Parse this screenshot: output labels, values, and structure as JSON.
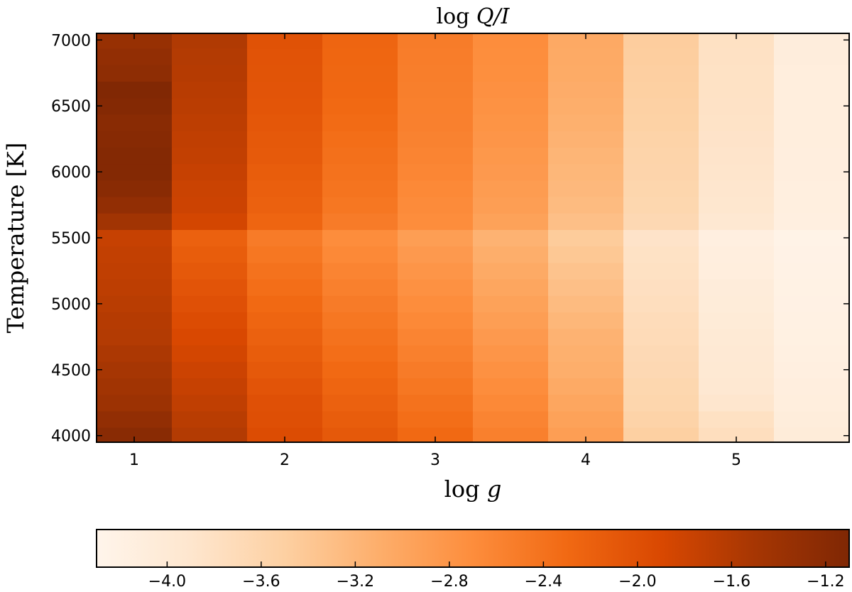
{
  "chart_data": {
    "type": "heatmap",
    "title": "log Q/I",
    "title_parts": {
      "prefix": "log ",
      "math": "Q/I"
    },
    "xlabel": "log g",
    "xlabel_parts": {
      "prefix": "log ",
      "math": "g"
    },
    "ylabel": "Temperature [K]",
    "x": [
      1.0,
      1.5,
      2.0,
      2.5,
      3.0,
      3.5,
      4.0,
      4.5,
      5.0,
      5.5
    ],
    "y": [
      4000,
      4125,
      4250,
      4375,
      4500,
      4625,
      4750,
      4875,
      5000,
      5125,
      5250,
      5375,
      5500,
      5625,
      5750,
      5875,
      6000,
      6125,
      6250,
      6375,
      6500,
      6625,
      6750,
      6875,
      7000
    ],
    "xlim": [
      0.75,
      5.75
    ],
    "ylim": [
      3950,
      7050
    ],
    "xticks": [
      1,
      2,
      3,
      4,
      5
    ],
    "yticks": [
      4000,
      4500,
      5000,
      5500,
      6000,
      6500,
      7000
    ],
    "colorbar": {
      "orientation": "horizontal",
      "colormap": "Oranges",
      "vmin": -4.3,
      "vmax": -1.1,
      "ticks": [
        "−4.0",
        "−3.6",
        "−3.2",
        "−2.8",
        "−2.4",
        "−2.0",
        "−1.6",
        "−1.2"
      ],
      "tick_values": [
        -4.0,
        -3.6,
        -3.2,
        -2.8,
        -2.4,
        -2.0,
        -1.6,
        -1.2
      ]
    },
    "grid": false,
    "z_approx": [
      [
        -1.2,
        -1.6,
        -1.95,
        -2.1,
        -2.3,
        -2.55,
        -2.9,
        -3.5,
        -3.75,
        -4.05
      ],
      [
        -1.3,
        -1.65,
        -1.98,
        -2.15,
        -2.35,
        -2.6,
        -2.95,
        -3.55,
        -3.8,
        -4.08
      ],
      [
        -1.4,
        -1.7,
        -2.0,
        -2.2,
        -2.4,
        -2.65,
        -3.0,
        -3.6,
        -3.9,
        -4.1
      ],
      [
        -1.45,
        -1.75,
        -2.05,
        -2.25,
        -2.45,
        -2.7,
        -3.05,
        -3.62,
        -3.95,
        -4.12
      ],
      [
        -1.5,
        -1.8,
        -2.1,
        -2.3,
        -2.5,
        -2.75,
        -3.1,
        -3.65,
        -3.97,
        -4.15
      ],
      [
        -1.55,
        -1.85,
        -2.15,
        -2.35,
        -2.55,
        -2.8,
        -3.12,
        -3.67,
        -3.98,
        -4.16
      ],
      [
        -1.6,
        -1.9,
        -2.2,
        -2.4,
        -2.6,
        -2.85,
        -3.15,
        -3.7,
        -4.0,
        -4.18
      ],
      [
        -1.62,
        -1.95,
        -2.25,
        -2.45,
        -2.65,
        -2.9,
        -3.2,
        -3.72,
        -4.02,
        -4.19
      ],
      [
        -1.65,
        -2.0,
        -2.3,
        -2.5,
        -2.7,
        -2.95,
        -3.25,
        -3.75,
        -4.05,
        -4.2
      ],
      [
        -1.68,
        -2.05,
        -2.35,
        -2.55,
        -2.75,
        -3.0,
        -3.3,
        -3.78,
        -4.07,
        -4.21
      ],
      [
        -1.7,
        -2.1,
        -2.4,
        -2.6,
        -2.8,
        -3.05,
        -3.35,
        -3.8,
        -4.1,
        -4.22
      ],
      [
        -1.72,
        -2.15,
        -2.45,
        -2.65,
        -2.85,
        -3.1,
        -3.4,
        -3.82,
        -4.12,
        -4.23
      ],
      [
        -1.75,
        -2.2,
        -2.5,
        -2.7,
        -2.9,
        -3.15,
        -3.45,
        -3.85,
        -4.15,
        -4.25
      ],
      [
        -1.45,
        -1.85,
        -2.25,
        -2.5,
        -2.7,
        -2.95,
        -3.3,
        -3.65,
        -3.95,
        -4.15
      ],
      [
        -1.3,
        -1.8,
        -2.2,
        -2.45,
        -2.68,
        -2.9,
        -3.25,
        -3.62,
        -3.92,
        -4.14
      ],
      [
        -1.2,
        -1.78,
        -2.18,
        -2.42,
        -2.65,
        -2.88,
        -3.22,
        -3.6,
        -3.9,
        -4.13
      ],
      [
        -1.15,
        -1.75,
        -2.15,
        -2.4,
        -2.62,
        -2.85,
        -3.2,
        -3.58,
        -3.88,
        -4.12
      ],
      [
        -1.15,
        -1.72,
        -2.12,
        -2.38,
        -2.6,
        -2.83,
        -3.18,
        -3.57,
        -3.87,
        -4.12
      ],
      [
        -1.18,
        -1.7,
        -2.1,
        -2.35,
        -2.58,
        -2.8,
        -3.15,
        -3.55,
        -3.85,
        -4.11
      ],
      [
        -1.2,
        -1.68,
        -2.08,
        -2.32,
        -2.56,
        -2.78,
        -3.12,
        -3.53,
        -3.84,
        -4.11
      ],
      [
        -1.15,
        -1.66,
        -2.06,
        -2.3,
        -2.55,
        -2.76,
        -3.1,
        -3.52,
        -3.83,
        -4.1
      ],
      [
        -1.12,
        -1.64,
        -2.05,
        -2.28,
        -2.54,
        -2.74,
        -3.08,
        -3.5,
        -3.82,
        -4.1
      ],
      [
        -1.25,
        -1.62,
        -2.04,
        -2.27,
        -2.53,
        -2.72,
        -3.06,
        -3.49,
        -3.82,
        -4.1
      ],
      [
        -1.3,
        -1.6,
        -2.03,
        -2.26,
        -2.52,
        -2.71,
        -3.05,
        -3.48,
        -3.81,
        -4.09
      ],
      [
        -1.35,
        -1.58,
        -2.02,
        -2.25,
        -2.51,
        -2.7,
        -3.04,
        -3.47,
        -3.8,
        -4.09
      ]
    ]
  }
}
